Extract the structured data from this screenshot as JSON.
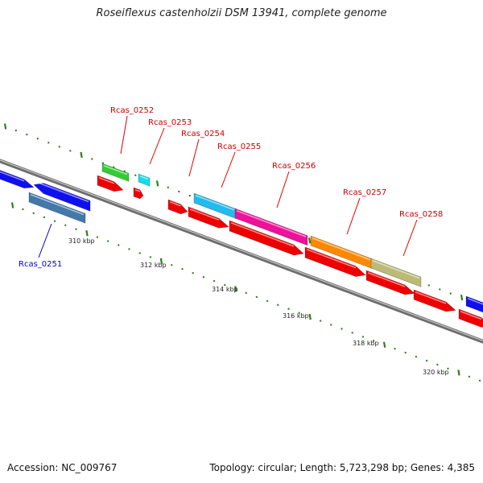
{
  "title": "Roseiflexus castenholzii DSM 13941, complete genome",
  "footer": {
    "accession": "Accession: NC_009767",
    "summary": "Topology: circular; Length: 5,723,298 bp; Genes: 4,385"
  },
  "colors": {
    "backbone": "#8a8a8a",
    "tick": "#2e7d1e",
    "scale_label": "#222222",
    "gene_label_top": "#cc0000",
    "gene_label_bottom": "#0000cc",
    "leader_top": "#dd0000",
    "leader_bottom": "#0000cc"
  },
  "scale_labels": [
    "310 kbp",
    "312 kbp",
    "314 kbp",
    "316 kbp",
    "318 kbp",
    "320 kbp"
  ],
  "gene_labels": [
    {
      "text": "Rcas_0251",
      "color": "#0000cc"
    },
    {
      "text": "Rcas_0252",
      "color": "#cc0000"
    },
    {
      "text": "Rcas_0253",
      "color": "#cc0000"
    },
    {
      "text": "Rcas_0254",
      "color": "#cc0000"
    },
    {
      "text": "Rcas_0255",
      "color": "#cc0000"
    },
    {
      "text": "Rcas_0256",
      "color": "#cc0000"
    },
    {
      "text": "Rcas_0257",
      "color": "#cc0000"
    },
    {
      "text": "Rcas_0258",
      "color": "#cc0000"
    }
  ],
  "features": {
    "blue_cds": "#1010ee",
    "red_cds": "#ee0000",
    "green_gene": "#33cc33",
    "cyan_gene": "#11ddee",
    "skyblue_gene": "#22bbee",
    "magenta_gene": "#ee1199",
    "orange_gene": "#ff8800",
    "khaki_gene": "#bbbb77",
    "steelblue_gene": "#4477aa"
  }
}
